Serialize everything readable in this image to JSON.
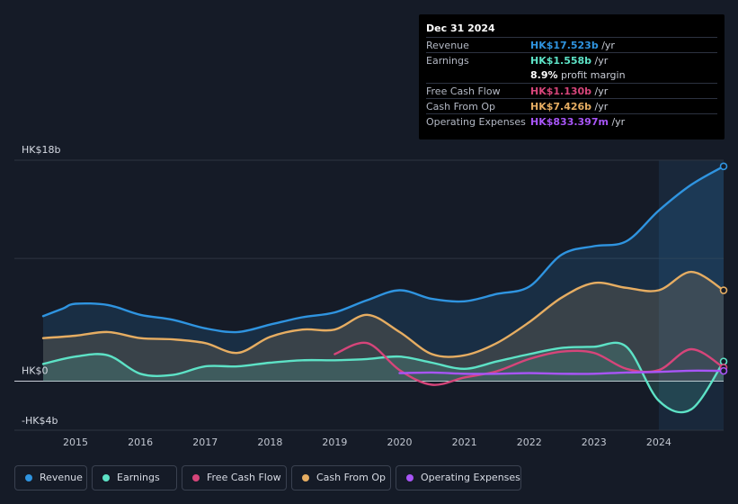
{
  "tooltip": {
    "date": "Dec 31 2024",
    "rows": [
      {
        "label": "Revenue",
        "value": "HK$17.523b",
        "unit": " /yr",
        "color": "#2f94e0"
      },
      {
        "label": "Earnings",
        "value": "HK$1.558b",
        "unit": " /yr",
        "color": "#5de2c6"
      },
      {
        "label": "",
        "value": "8.9%",
        "unit": " profit margin",
        "color": "#ffffff"
      },
      {
        "label": "Free Cash Flow",
        "value": "HK$1.130b",
        "unit": " /yr",
        "color": "#d6457a"
      },
      {
        "label": "Cash From Op",
        "value": "HK$7.426b",
        "unit": " /yr",
        "color": "#e6ad62"
      },
      {
        "label": "Operating Expenses",
        "value": "HK$833.397m",
        "unit": " /yr",
        "color": "#a855f7"
      }
    ]
  },
  "legend": [
    {
      "label": "Revenue",
      "color": "#2f94e0"
    },
    {
      "label": "Earnings",
      "color": "#5de2c6"
    },
    {
      "label": "Free Cash Flow",
      "color": "#d6457a"
    },
    {
      "label": "Cash From Op",
      "color": "#e6ad62"
    },
    {
      "label": "Operating Expenses",
      "color": "#a855f7"
    }
  ],
  "chart_data": {
    "type": "area",
    "title": "",
    "xlabel": "",
    "ylabel": "",
    "ylim": [
      -4,
      18
    ],
    "xlim": [
      2014.5,
      2025.0
    ],
    "y_tick_labels": [
      {
        "value": 18,
        "label": "HK$18b"
      },
      {
        "value": 0,
        "label": "HK$0"
      },
      {
        "value": -4,
        "label": "-HK$4b"
      }
    ],
    "x_ticks": [
      2015,
      2016,
      2017,
      2018,
      2019,
      2020,
      2021,
      2022,
      2023,
      2024
    ],
    "x_tick_labels": [
      "2015",
      "2016",
      "2017",
      "2018",
      "2019",
      "2020",
      "2021",
      "2022",
      "2023",
      "2024"
    ],
    "gridlines": [
      18,
      10,
      0
    ],
    "highlight_from": 2024.0,
    "series": [
      {
        "name": "Revenue",
        "color": "#2f94e0",
        "filled": true,
        "x": [
          2014.5,
          2014.8,
          2015.0,
          2015.5,
          2016.0,
          2016.5,
          2017.0,
          2017.5,
          2018.0,
          2018.5,
          2019.0,
          2019.5,
          2020.0,
          2020.5,
          2021.0,
          2021.5,
          2022.0,
          2022.5,
          2023.0,
          2023.5,
          2024.0,
          2024.5,
          2025.0
        ],
        "values": [
          5.3,
          5.9,
          6.3,
          6.2,
          5.4,
          5.0,
          4.3,
          4.0,
          4.6,
          5.2,
          5.6,
          6.6,
          7.4,
          6.7,
          6.5,
          7.1,
          7.7,
          10.3,
          11.0,
          11.4,
          13.9,
          16.0,
          17.5
        ]
      },
      {
        "name": "Cash From Op",
        "color": "#e6ad62",
        "filled": true,
        "x": [
          2014.5,
          2015.0,
          2015.5,
          2016.0,
          2016.5,
          2017.0,
          2017.5,
          2018.0,
          2018.5,
          2019.0,
          2019.5,
          2020.0,
          2020.5,
          2021.0,
          2021.5,
          2022.0,
          2022.5,
          2023.0,
          2023.5,
          2024.0,
          2024.5,
          2025.0
        ],
        "values": [
          3.5,
          3.7,
          4.0,
          3.5,
          3.4,
          3.1,
          2.3,
          3.6,
          4.2,
          4.2,
          5.4,
          4.0,
          2.2,
          2.1,
          3.1,
          4.8,
          6.8,
          8.0,
          7.6,
          7.4,
          8.9,
          7.4
        ]
      },
      {
        "name": "Earnings",
        "color": "#5de2c6",
        "filled": true,
        "x": [
          2014.5,
          2015.0,
          2015.5,
          2016.0,
          2016.5,
          2017.0,
          2017.5,
          2018.0,
          2018.5,
          2019.0,
          2019.5,
          2020.0,
          2020.5,
          2021.0,
          2021.5,
          2022.0,
          2022.5,
          2023.0,
          2023.5,
          2024.0,
          2024.5,
          2025.0
        ],
        "values": [
          1.4,
          2.0,
          2.1,
          0.6,
          0.5,
          1.2,
          1.2,
          1.5,
          1.7,
          1.7,
          1.8,
          2.0,
          1.5,
          1.0,
          1.6,
          2.2,
          2.7,
          2.8,
          2.8,
          -1.6,
          -2.3,
          1.6
        ]
      },
      {
        "name": "Free Cash Flow",
        "color": "#d6457a",
        "filled": false,
        "x": [
          2019.0,
          2019.5,
          2020.0,
          2020.5,
          2021.0,
          2021.5,
          2022.0,
          2022.5,
          2023.0,
          2023.5,
          2024.0,
          2024.5,
          2025.0
        ],
        "values": [
          2.2,
          3.1,
          0.9,
          -0.3,
          0.3,
          0.8,
          1.8,
          2.4,
          2.3,
          1.0,
          0.9,
          2.6,
          1.1
        ]
      },
      {
        "name": "Operating Expenses",
        "color": "#a855f7",
        "filled": false,
        "x": [
          2020.0,
          2020.5,
          2021.0,
          2021.5,
          2022.0,
          2022.5,
          2023.0,
          2023.5,
          2024.0,
          2024.5,
          2025.0
        ],
        "values": [
          0.65,
          0.7,
          0.6,
          0.6,
          0.65,
          0.6,
          0.6,
          0.7,
          0.75,
          0.85,
          0.83
        ]
      }
    ]
  }
}
